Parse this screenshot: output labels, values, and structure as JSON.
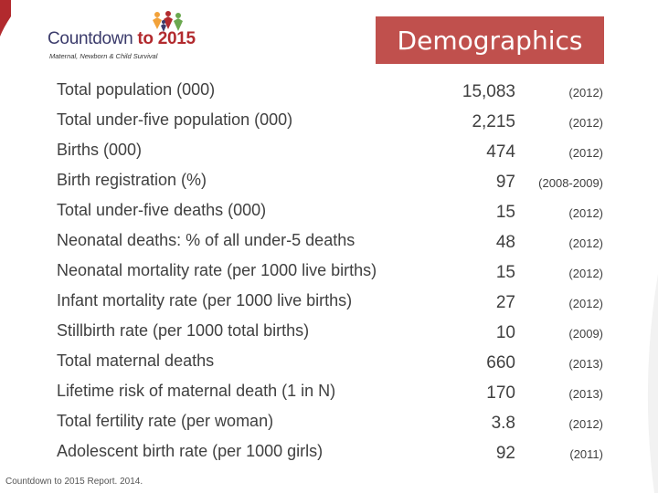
{
  "logo": {
    "title_main": "Countdown ",
    "title_accent": "to 2015",
    "subtitle": "Maternal, Newborn & Child Survival"
  },
  "header": {
    "title": "Demographics"
  },
  "colors": {
    "accent": "#c0504d",
    "text": "#404040",
    "logo_blue": "#3b3b6b"
  },
  "rows": [
    {
      "label": "Total population (000)",
      "value": "15,083",
      "year": "(2012)"
    },
    {
      "label": "Total under-five population (000)",
      "value": "2,215",
      "year": "(2012)"
    },
    {
      "label": "Births (000)",
      "value": "474",
      "year": "(2012)"
    },
    {
      "label": "Birth registration (%)",
      "value": "97",
      "year": "(2008-2009)"
    },
    {
      "label": "Total under-five deaths (000)",
      "value": "15",
      "year": "(2012)"
    },
    {
      "label": "Neonatal deaths: % of all under-5 deaths",
      "value": "48",
      "year": "(2012)"
    },
    {
      "label": "Neonatal mortality rate (per 1000 live births)",
      "value": "15",
      "year": "(2012)"
    },
    {
      "label": "Infant mortality rate (per 1000 live births)",
      "value": "27",
      "year": "(2012)"
    },
    {
      "label": "Stillbirth rate (per 1000 total births)",
      "value": "10",
      "year": "(2009)"
    },
    {
      "label": "Total maternal deaths",
      "value": "660",
      "year": "(2013)"
    },
    {
      "label": "Lifetime risk of maternal death (1 in N)",
      "value": "170",
      "year": "(2013)"
    },
    {
      "label": "Total fertility rate (per woman)",
      "value": "3.8",
      "year": "(2012)"
    },
    {
      "label": "Adolescent birth rate (per 1000 girls)",
      "value": "92",
      "year": "(2011)"
    }
  ],
  "footer": {
    "source": "Countdown to 2015 Report. 2014."
  }
}
